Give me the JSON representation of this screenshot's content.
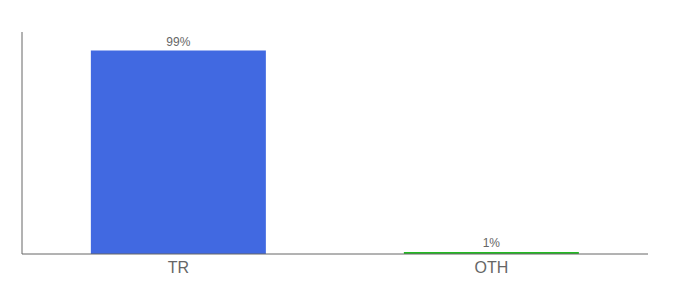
{
  "chart_data": {
    "type": "bar",
    "categories": [
      "TR",
      "OTH"
    ],
    "values": [
      99,
      1
    ],
    "colors": [
      "#4169e1",
      "#22bb22"
    ],
    "ylim": [
      0,
      108
    ],
    "data_labels": true,
    "value_labels": [
      "99%",
      "1%"
    ],
    "tick_labels": "x"
  }
}
